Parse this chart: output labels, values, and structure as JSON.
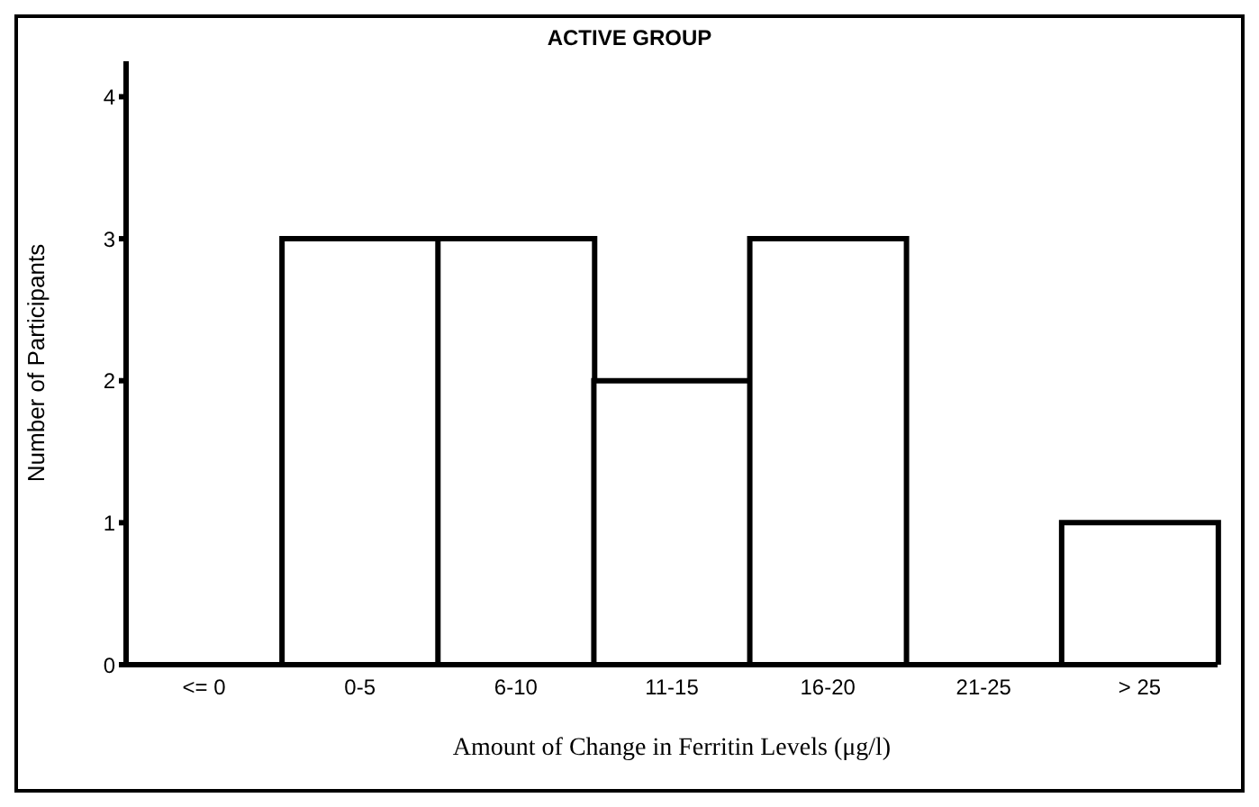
{
  "chart_data": {
    "type": "bar",
    "title": "ACTIVE GROUP",
    "xlabel": "Amount of Change in Ferritin Levels (μg/l)",
    "ylabel": "Number of Participants",
    "categories": [
      "<= 0",
      "0-5",
      "6-10",
      "11-15",
      "16-20",
      "21-25",
      "> 25"
    ],
    "values": [
      0,
      3,
      3,
      2,
      3,
      0,
      1
    ],
    "color": "#ffffff",
    "ylim": [
      0,
      4.25
    ],
    "yticks": [
      0,
      1,
      2,
      3,
      4
    ]
  }
}
